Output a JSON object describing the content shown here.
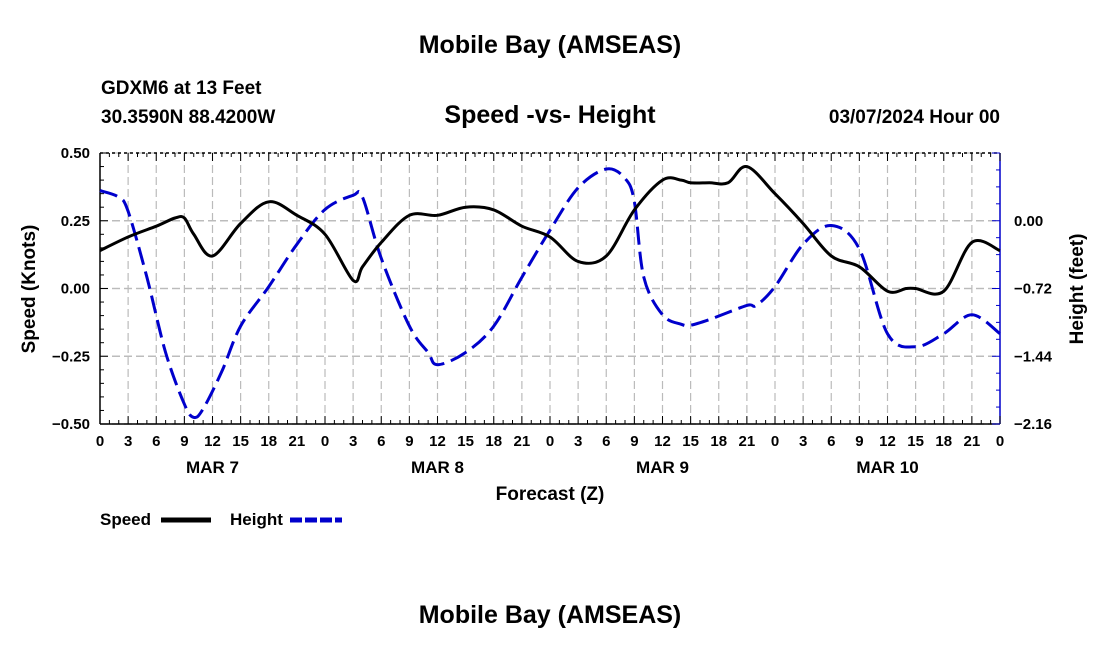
{
  "header": {
    "title": "Mobile Bay (AMSEAS)",
    "station": "GDXM6 at 13 Feet",
    "coordinates": "30.3590N  88.4200W",
    "subtitle": "Speed -vs- Height",
    "datetime": "03/07/2024 Hour 00"
  },
  "footer": {
    "title": "Mobile Bay (AMSEAS)"
  },
  "legend": {
    "speed_label": "Speed",
    "height_label": "Height"
  },
  "colors": {
    "speed": "#000000",
    "height": "#0000cc",
    "grid": "#bbbbbb"
  },
  "chart_data": {
    "type": "line",
    "xlabel": "Forecast (Z)",
    "ylabel_left": "Speed (Knots)",
    "ylabel_right": "Height (feet)",
    "x_unit": "hours from 03/07/2024 00Z",
    "xlim": [
      0,
      96
    ],
    "ylim_left": [
      -0.5,
      0.5
    ],
    "ylim_right": [
      -2.16,
      0.72
    ],
    "x_tick_labels": [
      "0",
      "3",
      "6",
      "9",
      "12",
      "15",
      "18",
      "21",
      "0",
      "3",
      "6",
      "9",
      "12",
      "15",
      "18",
      "21",
      "0",
      "3",
      "6",
      "9",
      "12",
      "15",
      "18",
      "21",
      "0",
      "3",
      "6",
      "9",
      "12",
      "15",
      "18",
      "21",
      "0"
    ],
    "date_labels": [
      "MAR 7",
      "MAR 8",
      "MAR 9",
      "MAR 10"
    ],
    "y_tick_labels_left": [
      "0.50",
      "0.25",
      "0.00",
      "−0.25",
      "−0.50"
    ],
    "y_tick_labels_right": [
      "0.00",
      "−0.72",
      "−1.44",
      "−2.16"
    ],
    "grid": true,
    "legend_position": "bottom-left",
    "series": [
      {
        "name": "Speed",
        "axis": "left",
        "style": "solid",
        "x": [
          0,
          3,
          6,
          8,
          9,
          10,
          12,
          15,
          18,
          21,
          24,
          27,
          28,
          30,
          33,
          36,
          39,
          42,
          45,
          48,
          51,
          54,
          57,
          60,
          62,
          63,
          65,
          67,
          69,
          72,
          75,
          78,
          81,
          84,
          86,
          87,
          90,
          93,
          96
        ],
        "y": [
          0.14,
          0.19,
          0.23,
          0.26,
          0.26,
          0.2,
          0.12,
          0.24,
          0.32,
          0.27,
          0.2,
          0.03,
          0.08,
          0.17,
          0.27,
          0.27,
          0.3,
          0.29,
          0.23,
          0.19,
          0.1,
          0.12,
          0.29,
          0.4,
          0.4,
          0.39,
          0.39,
          0.39,
          0.45,
          0.35,
          0.24,
          0.12,
          0.08,
          -0.01,
          0.0,
          0.0,
          -0.01,
          0.17,
          0.14
        ]
      },
      {
        "name": "Height",
        "axis": "right",
        "style": "dashed",
        "x": [
          0,
          2,
          3,
          5,
          7,
          9,
          10,
          11,
          13,
          15,
          18,
          21,
          24,
          27,
          28,
          30,
          33,
          35,
          36,
          39,
          42,
          45,
          48,
          51,
          54,
          56,
          57,
          58,
          60,
          62,
          63,
          65,
          69,
          70,
          72,
          75,
          78,
          81,
          84,
          87,
          90,
          93,
          96
        ],
        "y": [
          0.32,
          0.25,
          0.1,
          -0.6,
          -1.4,
          -1.95,
          -2.09,
          -2.0,
          -1.6,
          -1.12,
          -0.7,
          -0.25,
          0.12,
          0.27,
          0.25,
          -0.4,
          -1.12,
          -1.4,
          -1.53,
          -1.4,
          -1.12,
          -0.6,
          -0.1,
          0.35,
          0.55,
          0.45,
          0.2,
          -0.6,
          -1.0,
          -1.1,
          -1.11,
          -1.05,
          -0.9,
          -0.9,
          -0.7,
          -0.25,
          -0.05,
          -0.3,
          -1.2,
          -1.34,
          -1.2,
          -1.0,
          -1.2
        ]
      }
    ]
  }
}
